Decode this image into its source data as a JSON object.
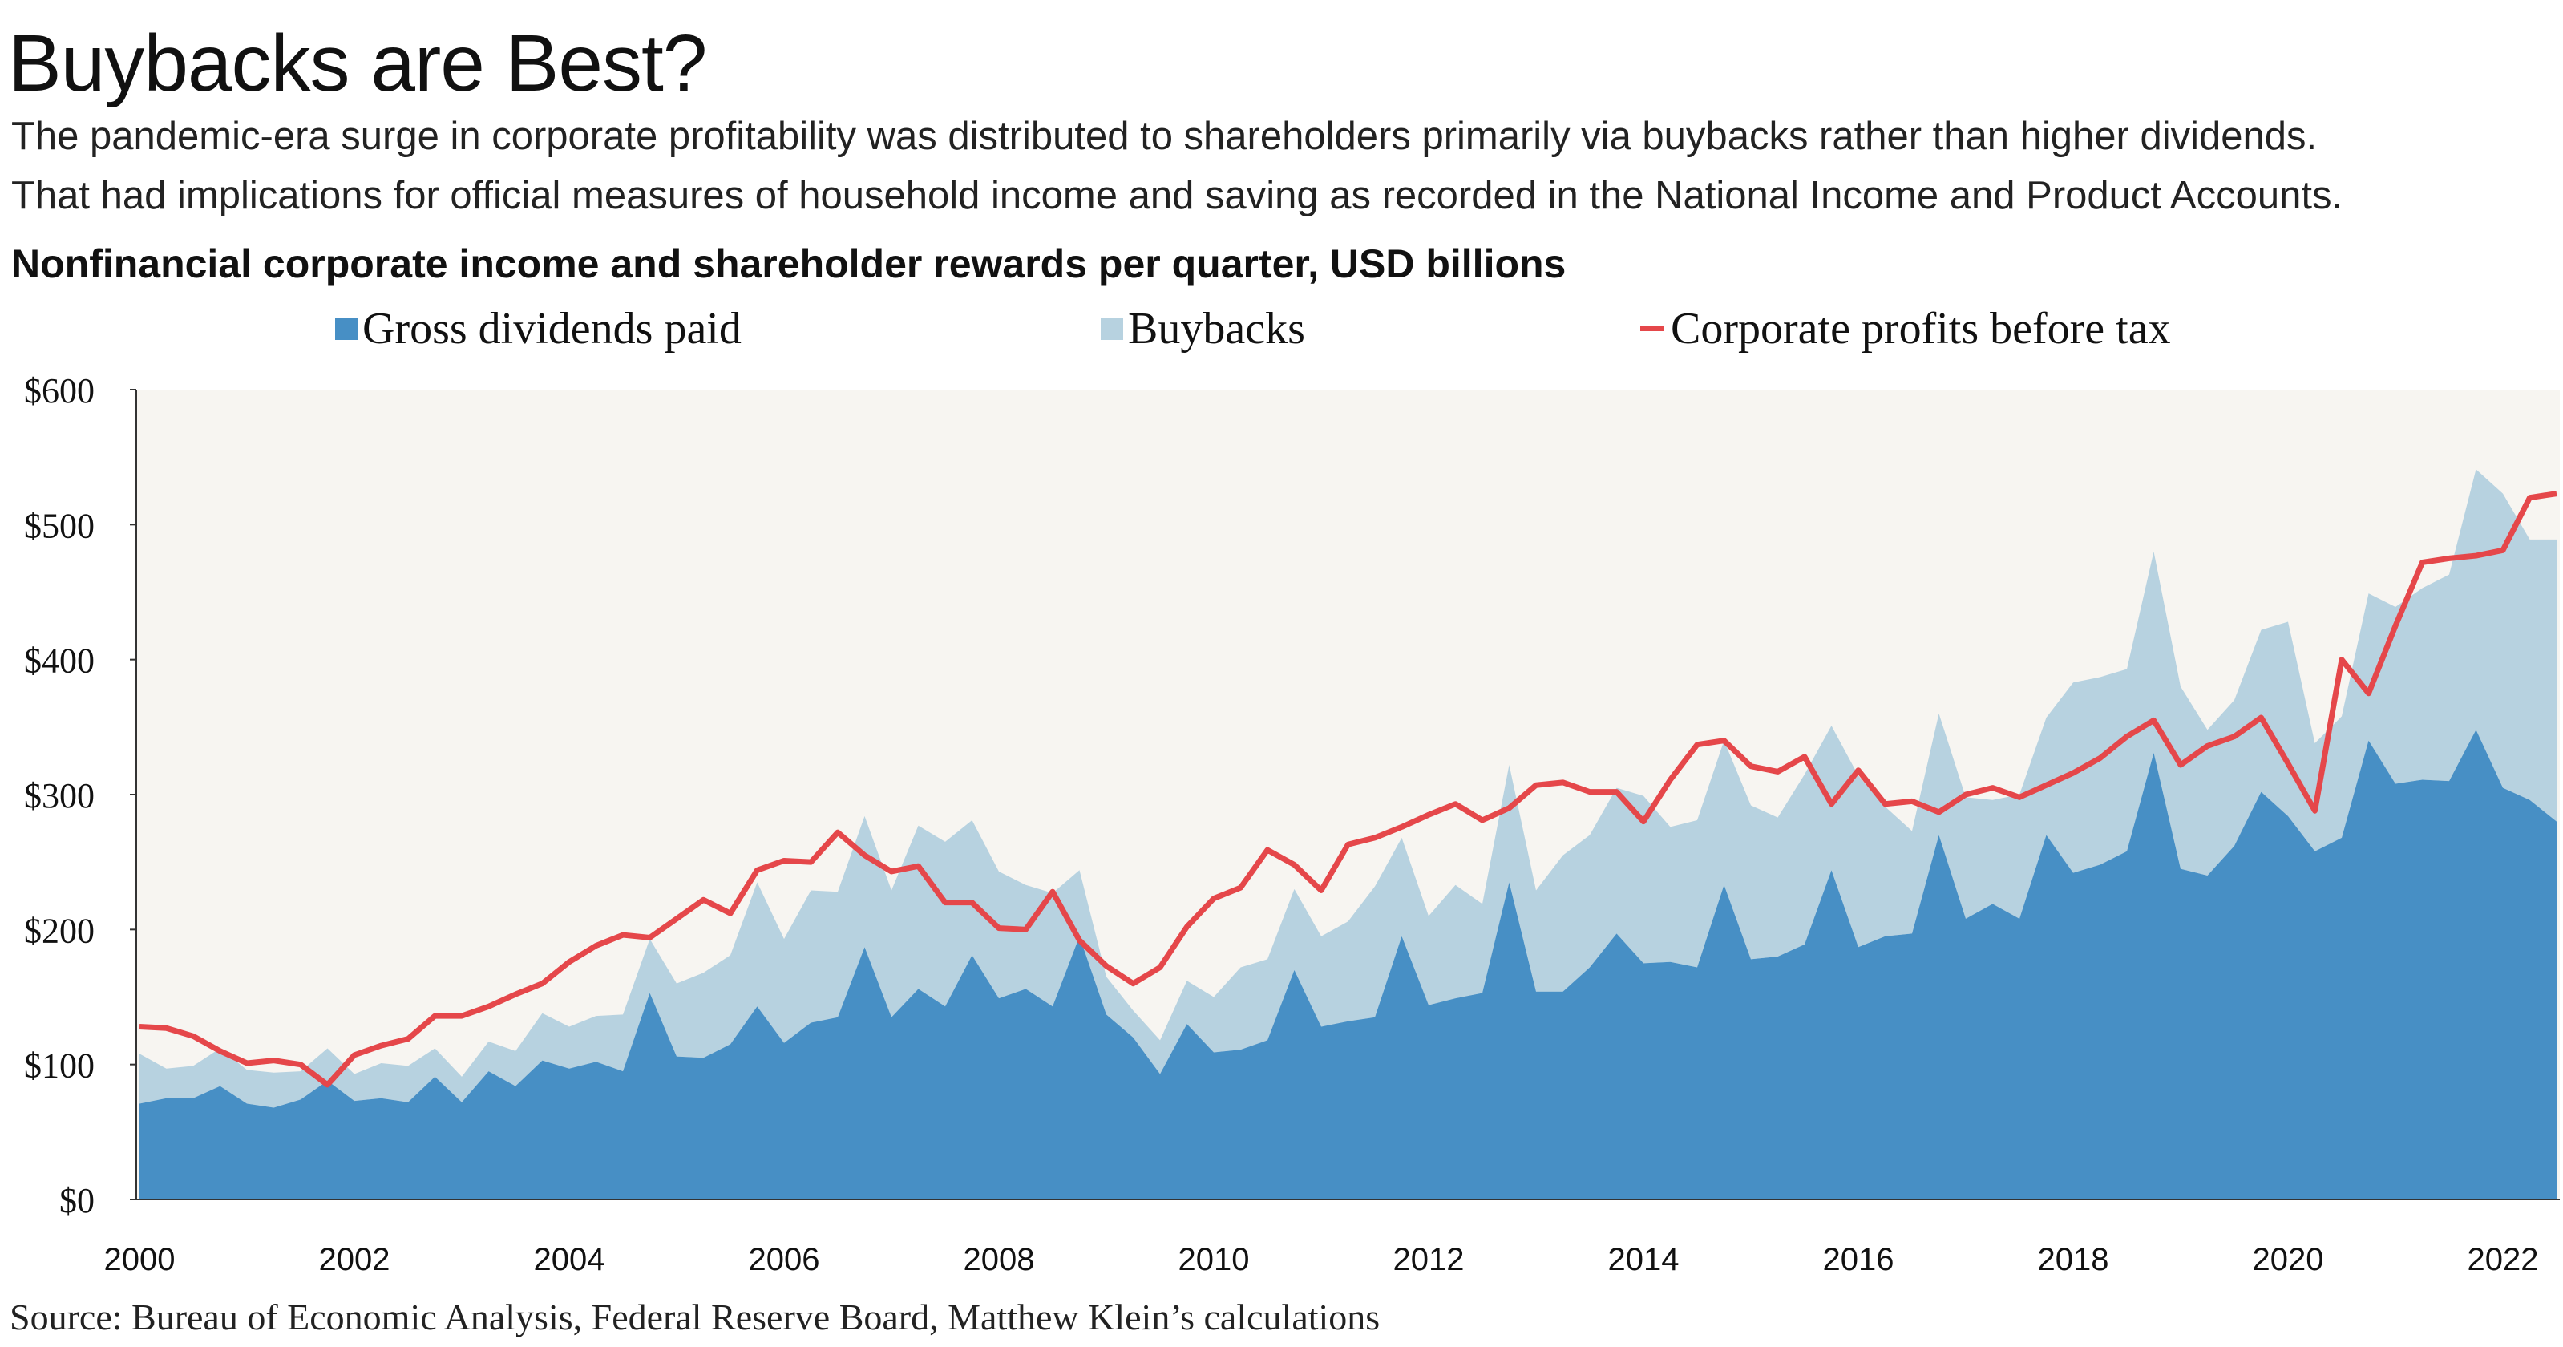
{
  "title": "Buybacks are Best?",
  "subtitle_lines": [
    "The pandemic-era surge in corporate profitability was distributed to shareholders primarily via buybacks rather than higher dividends.",
    "That had implications for official measures of household income and saving as recorded in the National Income and Product Accounts."
  ],
  "source": "Source: Bureau of Economic Analysis, Federal Reserve Board, Matthew Klein’s calculations",
  "colors": {
    "dividends": "#478fc5",
    "buybacks": "#b7d2e0",
    "profits": "#e5474a",
    "plot_bg": "#f7f5f1"
  },
  "chart_data": {
    "type": "area",
    "title": "Nonfinancial corporate income and shareholder rewards per quarter, USD billions",
    "stacked": true,
    "x_start": "2000-Q1",
    "frequency": "quarterly",
    "ylim": [
      0,
      600
    ],
    "yticks": [
      "$0",
      "$100",
      "$200",
      "$300",
      "$400",
      "$500",
      "$600"
    ],
    "ytick_values": [
      0,
      100,
      200,
      300,
      400,
      500,
      600
    ],
    "xticks": [
      "2000",
      "2002",
      "2004",
      "2006",
      "2008",
      "2010",
      "2012",
      "2014",
      "2016",
      "2018",
      "2020",
      "2022"
    ],
    "legend_placement": "top",
    "series": [
      {
        "name": "Gross dividends paid",
        "kind": "area",
        "values": [
          71,
          75,
          75,
          84,
          71,
          68,
          74,
          88,
          73,
          75,
          72,
          91,
          72,
          95,
          84,
          103,
          97,
          102,
          95,
          153,
          106,
          105,
          115,
          143,
          116,
          131,
          135,
          187,
          135,
          156,
          143,
          181,
          149,
          156,
          143,
          195,
          137,
          120,
          93,
          130,
          109,
          111,
          118,
          170,
          128,
          132,
          135,
          195,
          144,
          149,
          153,
          235,
          154,
          154,
          172,
          197,
          175,
          176,
          172,
          233,
          178,
          180,
          189,
          244,
          187,
          195,
          197,
          270,
          208,
          219,
          208,
          270,
          242,
          248,
          258,
          331,
          245,
          240,
          262,
          302,
          284,
          258,
          268,
          340,
          308,
          311,
          310,
          348,
          305,
          296,
          280
        ]
      },
      {
        "name": "Buybacks",
        "kind": "area",
        "values": [
          37,
          22,
          24,
          28,
          25,
          26,
          21,
          24,
          20,
          26,
          27,
          21,
          19,
          22,
          26,
          35,
          31,
          34,
          42,
          40,
          54,
          63,
          66,
          92,
          77,
          98,
          93,
          97,
          94,
          121,
          122,
          100,
          94,
          77,
          84,
          49,
          28,
          20,
          25,
          32,
          41,
          61,
          60,
          60,
          67,
          74,
          97,
          73,
          66,
          84,
          66,
          87,
          75,
          101,
          98,
          108,
          124,
          100,
          109,
          107,
          114,
          103,
          126,
          107,
          127,
          96,
          76,
          90,
          90,
          77,
          92,
          87,
          141,
          139,
          135,
          149,
          135,
          108,
          108,
          120,
          144,
          80,
          90,
          109,
          131,
          142,
          153,
          193,
          218,
          193,
          209
        ]
      },
      {
        "name": "Corporate profits before tax",
        "kind": "line",
        "values": [
          128,
          127,
          121,
          110,
          101,
          103,
          100,
          85,
          107,
          114,
          119,
          136,
          136,
          143,
          152,
          160,
          176,
          188,
          196,
          194,
          208,
          222,
          212,
          244,
          251,
          250,
          272,
          255,
          243,
          247,
          220,
          220,
          201,
          200,
          228,
          192,
          173,
          160,
          172,
          202,
          223,
          231,
          259,
          248,
          229,
          263,
          268,
          276,
          285,
          293,
          281,
          290,
          307,
          309,
          302,
          302,
          280,
          311,
          337,
          340,
          321,
          317,
          328,
          293,
          318,
          293,
          295,
          287,
          300,
          305,
          298,
          307,
          316,
          327,
          343,
          355,
          322,
          336,
          343,
          357,
          323,
          288,
          400,
          375,
          425,
          472,
          475,
          477,
          481,
          520,
          523
        ]
      }
    ]
  }
}
